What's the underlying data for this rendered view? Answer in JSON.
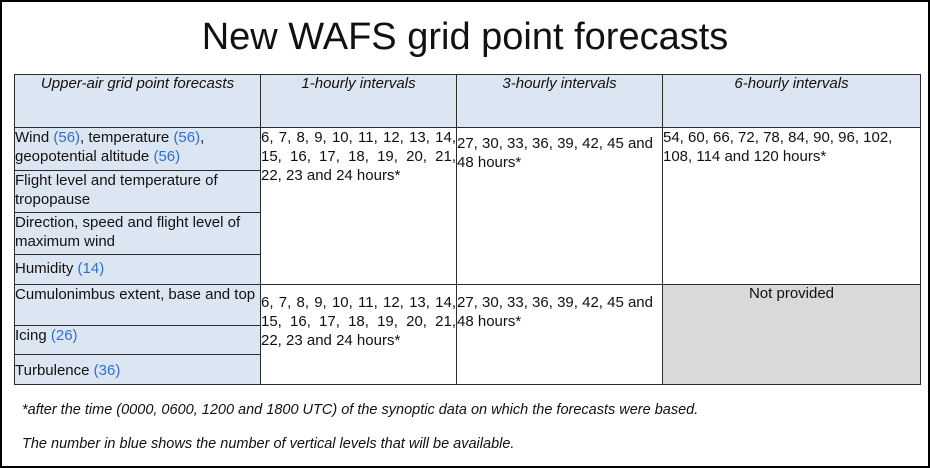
{
  "title": "New WAFS grid point forecasts",
  "header": {
    "col1": "Upper-air grid point forecasts",
    "col2": "1-hourly intervals",
    "col3": "3-hourly intervals",
    "col4": "6-hourly intervals"
  },
  "group1": {
    "params": {
      "wind": "Wind",
      "wind_levels": "(56)",
      "temperature": ", temperature",
      "temperature_levels": "(56)",
      "geopotential": ", geopotential altitude",
      "geopotential_levels": "(56)",
      "tropopause": "Flight level and temperature of tropopause",
      "max_wind": "Direction, speed and flight level of maximum wind",
      "humidity": "Humidity",
      "humidity_levels": "(14)"
    },
    "hourly1": "6, 7, 8, 9, 10, 11, 12, 13, 14, 15, 16, 17, 18, 19, 20, 21, 22, 23 and 24 hours*",
    "hourly3": "27, 30, 33, 36, 39, 42, 45 and 48 hours*",
    "hourly6": "54, 60, 66, 72, 78, 84, 90, 96, 102, 108, 114 and 120 hours*"
  },
  "group2": {
    "params": {
      "cb": "Cumulonimbus extent, base and top",
      "icing": "Icing",
      "icing_levels": "(26)",
      "turbulence": "Turbulence",
      "turbulence_levels": "(36)"
    },
    "hourly1": "6, 7, 8, 9, 10, 11, 12, 13, 14, 15, 16, 17, 18, 19, 20, 21, 22, 23 and 24 hours*",
    "hourly3": "27, 30, 33, 36, 39, 42, 45 and 48 hours*",
    "hourly6": "Not provided"
  },
  "notes": {
    "footnote": "*after the time (0000, 0600, 1200 and 1800 UTC) of the synoptic data on which the forecasts were based.",
    "blue_note": "The number in blue  shows the number of vertical levels that will be available."
  },
  "colors": {
    "header_bg": "#dce6f2",
    "blue_text": "#2e6fd0",
    "not_provided_bg": "#d9d9d9"
  }
}
